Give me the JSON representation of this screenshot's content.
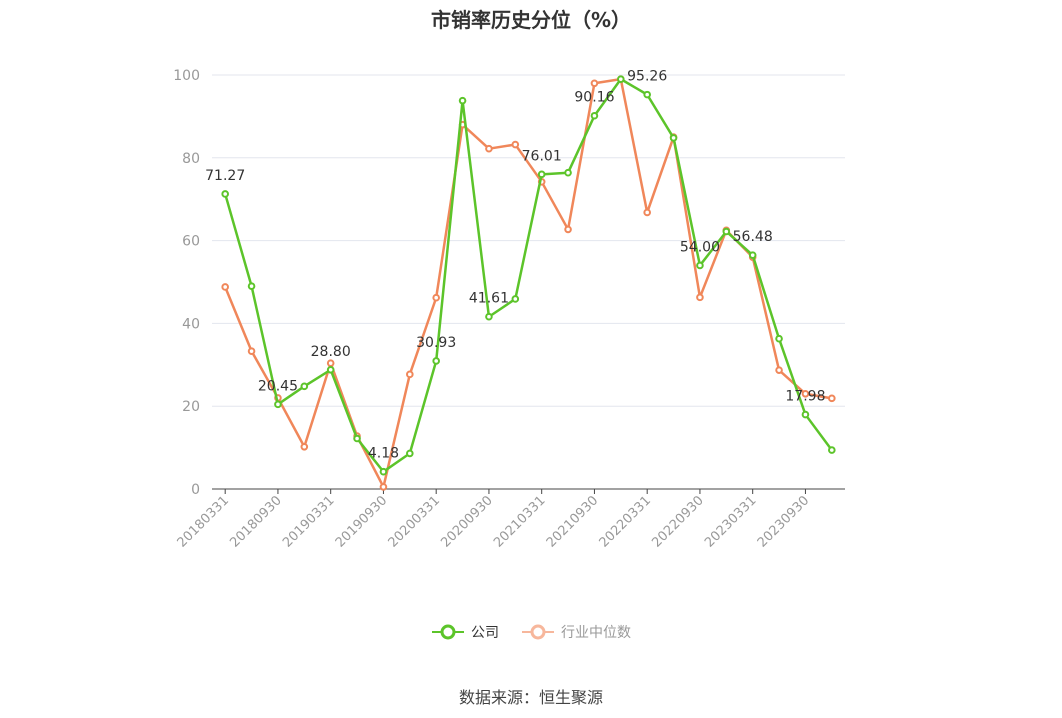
{
  "chart_data": {
    "type": "line",
    "title": "市销率历史分位（%）",
    "xlabel": "",
    "ylabel": "",
    "ylim": [
      0,
      100
    ],
    "yticks": [
      0,
      20,
      40,
      60,
      80,
      100
    ],
    "x": [
      "20180331",
      "20180630",
      "20180930",
      "20181231",
      "20190331",
      "20190630",
      "20190930",
      "20191231",
      "20200331",
      "20200630",
      "20200930",
      "20201231",
      "20210331",
      "20210630",
      "20210930",
      "20211231",
      "20220331",
      "20220630",
      "20220930",
      "20221231",
      "20230331",
      "20230630",
      "20230930",
      "20231231"
    ],
    "xtick_labels": [
      "20180331",
      "20180930",
      "20190331",
      "20190930",
      "20200331",
      "20200930",
      "20210331",
      "20210930",
      "20220331",
      "20220930",
      "20230331",
      "20230930"
    ],
    "grid": true,
    "legend_position": "bottom-center",
    "series": [
      {
        "name": "公司",
        "color": "#5cc42a",
        "values": [
          71.27,
          49.0,
          20.45,
          24.8,
          28.8,
          12.2,
          4.18,
          8.6,
          30.93,
          93.8,
          41.61,
          45.9,
          76.01,
          76.4,
          90.16,
          99.0,
          95.26,
          84.8,
          54.0,
          62.2,
          56.48,
          36.3,
          17.98,
          9.4
        ],
        "labeled_points": [
          {
            "index": 0,
            "text": "71.27"
          },
          {
            "index": 2,
            "text": "20.45"
          },
          {
            "index": 4,
            "text": "28.80"
          },
          {
            "index": 6,
            "text": "4.18"
          },
          {
            "index": 8,
            "text": "30.93"
          },
          {
            "index": 10,
            "text": "41.61"
          },
          {
            "index": 12,
            "text": "76.01"
          },
          {
            "index": 14,
            "text": "90.16"
          },
          {
            "index": 16,
            "text": "95.26"
          },
          {
            "index": 18,
            "text": "54.00"
          },
          {
            "index": 20,
            "text": "56.48"
          },
          {
            "index": 22,
            "text": "17.98"
          }
        ]
      },
      {
        "name": "行业中位数",
        "color": "#f0875a",
        "values": [
          48.8,
          33.3,
          22.0,
          10.2,
          30.4,
          12.8,
          0.5,
          27.7,
          46.2,
          88.0,
          82.2,
          83.2,
          74.2,
          62.7,
          98.0,
          99.0,
          66.8,
          85.0,
          46.3,
          62.5,
          56.0,
          28.7,
          23.0,
          21.9
        ]
      }
    ]
  },
  "legend": {
    "items": [
      {
        "label": "公司",
        "color": "#5cc42a",
        "swatch_color": "#5cc42a"
      },
      {
        "label": "行业中位数",
        "color": "#999999",
        "swatch_color": "#f7b79c"
      }
    ]
  },
  "footer": {
    "source": "数据来源：恒生聚源"
  }
}
